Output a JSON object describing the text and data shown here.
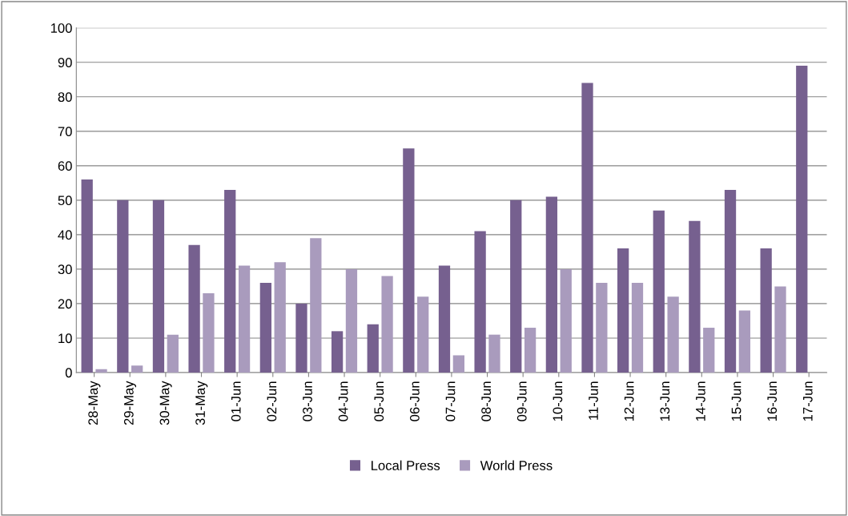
{
  "chart_data": {
    "type": "bar",
    "categories": [
      "28-May",
      "29-May",
      "30-May",
      "31-May",
      "01-Jun",
      "02-Jun",
      "03-Jun",
      "04-Jun",
      "05-Jun",
      "06-Jun",
      "07-Jun",
      "08-Jun",
      "09-Jun",
      "10-Jun",
      "11-Jun",
      "12-Jun",
      "13-Jun",
      "14-Jun",
      "15-Jun",
      "16-Jun",
      "17-Jun"
    ],
    "series": [
      {
        "name": "Local Press",
        "color": "#76608f",
        "values": [
          56,
          50,
          50,
          37,
          53,
          26,
          20,
          12,
          14,
          65,
          31,
          41,
          50,
          51,
          84,
          36,
          47,
          44,
          53,
          36,
          89
        ]
      },
      {
        "name": "World Press",
        "color": "#a99bbd",
        "values": [
          1,
          2,
          11,
          23,
          31,
          32,
          39,
          30,
          28,
          22,
          5,
          11,
          13,
          30,
          26,
          26,
          22,
          13,
          18,
          25,
          0
        ]
      }
    ],
    "ylim": [
      0,
      100
    ],
    "yticks": [
      0,
      10,
      20,
      30,
      40,
      50,
      60,
      70,
      80,
      90,
      100
    ],
    "grid": "y",
    "legend": "bottom"
  }
}
